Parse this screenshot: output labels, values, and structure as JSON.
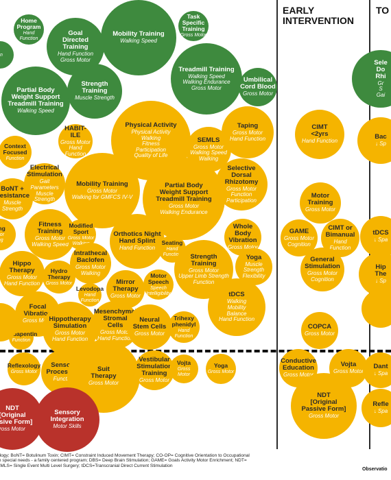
{
  "headers": {
    "early": "EARLY\nINTERVENTION",
    "right": "TO"
  },
  "colors": {
    "green": "#3e8a3e",
    "yellow": "#f5b400",
    "red": "#b9322b"
  },
  "bubbles": [
    {
      "title": "Home\nProgram",
      "sub": "Hand Function",
      "color": "green"
    },
    {
      "title": "",
      "sub": "on",
      "color": "green"
    },
    {
      "title": "Goal\nDirected\nTraining",
      "sub": "Hand Function\nGross Motor",
      "color": "green"
    },
    {
      "title": "Mobility Training",
      "sub": "Walking Speed",
      "color": "green"
    },
    {
      "title": "Task\nSpecific\nTraining",
      "sub": "Gross Motor",
      "color": "green"
    },
    {
      "title": "Treadmill Training",
      "sub": "Walking Speed\nWalking Endurance\nGross Motor",
      "color": "green"
    },
    {
      "title": "Partial Body\nWeight Support\nTreadmill Training",
      "sub": "Walking Speed",
      "color": "green"
    },
    {
      "title": "Strength\nTraining",
      "sub": "Muscle Strength",
      "color": "green"
    },
    {
      "title": "Umbilical\nCord Blood",
      "sub": "Gross Motor",
      "color": "green"
    },
    {
      "title": "Physical Activity",
      "sub": "Physical Activity\nWalking\nFitness\nParticipation\nQuality of Life",
      "color": "yellow"
    },
    {
      "title": "HABIT-ILE",
      "sub": "Gross Motor\nHand Function",
      "color": "yellow"
    },
    {
      "title": "SEMLS",
      "sub": "Gross Motor\nWalking Speed\nWalking",
      "color": "yellow"
    },
    {
      "title": "Taping",
      "sub": "Gross Motor\nHand Function",
      "color": "yellow"
    },
    {
      "title": "Context\nFocused",
      "sub": "Function",
      "color": "yellow"
    },
    {
      "title": "Electrical\nStimulation",
      "sub": "Gait Parameters\nMuscle Strength",
      "color": "yellow"
    },
    {
      "title": "Mobility Training",
      "sub": "Gross Motor\nWalking for GMFCS IV-V",
      "color": "yellow"
    },
    {
      "title": "Partial Body\nWeight Support\nTreadmill Training",
      "sub": "Gross Motor\nWalking Endurance",
      "color": "yellow"
    },
    {
      "title": "Selective\nDorsal\nRhizotomy",
      "sub": "Gross Motor\nFunction\nParticipation",
      "color": "yellow"
    },
    {
      "title": "BoNT +\nResistance",
      "sub": "Muscle\nStrength",
      "color": "yellow"
    },
    {
      "title": "Fitness\nTraining",
      "sub": "Gross Motor\nWalking Speed",
      "color": "yellow"
    },
    {
      "title": "Modified Sport",
      "sub": "Gross Motor\nWalking",
      "color": "yellow"
    },
    {
      "title": "Orthotics Night\nHand Splint",
      "sub": "Hand Function",
      "color": "yellow"
    },
    {
      "title": "Whole Body\nVibration",
      "sub": "Gross Motor",
      "color": "yellow"
    },
    {
      "title": "ting",
      "sub": "otor\ning",
      "color": "yellow"
    },
    {
      "title": "Intrathecal\nBaclofen",
      "sub": "Gross Motor\nWalking",
      "color": "yellow"
    },
    {
      "title": "Seating",
      "sub": "Hand\nFunction",
      "color": "yellow"
    },
    {
      "title": "Strength\nTraining",
      "sub": "Gross Motor\nUpper Limb Strength\nFunction",
      "color": "yellow"
    },
    {
      "title": "Yoga",
      "sub": "Muscle Strength\nFlexibility",
      "color": "yellow"
    },
    {
      "title": "Hippo\nTherapy",
      "sub": "Gross Motor\nHand Function",
      "color": "yellow"
    },
    {
      "title": "Hydro\nTherapy",
      "sub": "Gross Motor",
      "color": "yellow"
    },
    {
      "title": "Levodopa",
      "sub": "Hand Function",
      "color": "yellow"
    },
    {
      "title": "Mirror\nTherapy",
      "sub": "Gross Motor",
      "color": "yellow"
    },
    {
      "title": "Motor\nSpeech",
      "sub": "Speech\nIntelligibility",
      "color": "yellow"
    },
    {
      "title": "tDCS",
      "sub": "Walking\nMobility\nBalance\nHand Function",
      "color": "yellow"
    },
    {
      "title": "Focal\nVibration",
      "sub": "Gross Motor",
      "color": "yellow"
    },
    {
      "title": "Hippotherapy\nSimulation",
      "sub": "Gross Motor\nHand Function",
      "color": "yellow"
    },
    {
      "title": "Mesenchymal\nStromal\nCells",
      "sub": "Gross Motor\nHand Function",
      "color": "yellow"
    },
    {
      "title": "Neural\nStem Cells",
      "sub": "Gross Motor",
      "color": "yellow"
    },
    {
      "title": "Trihexy\nphenidyl",
      "sub": "Hand Function",
      "color": "yellow"
    },
    {
      "title": "Gabapentin",
      "sub": "Function",
      "color": "yellow"
    },
    {
      "title": "",
      "sub": "",
      "color": "yellow"
    },
    {
      "title": "CIMT\n<2yrs",
      "sub": "Hand Function",
      "color": "yellow"
    },
    {
      "title": "Motor\nTraining",
      "sub": "Gross Motor",
      "color": "yellow"
    },
    {
      "title": "GAME",
      "sub": "Gross Motor\nCognition",
      "color": "yellow"
    },
    {
      "title": "CIMT or\nBimanual",
      "sub": "Hand Function",
      "color": "yellow"
    },
    {
      "title": "General\nStimulation",
      "sub": "Gross Motor\nCognition",
      "color": "yellow"
    },
    {
      "title": "COPCA",
      "sub": "Gross Motor",
      "color": "yellow"
    },
    {
      "title": "Reflexology",
      "sub": "Gross Motor",
      "color": "yellow"
    },
    {
      "title": "Sensory\nProcessing",
      "sub": "Function",
      "color": "yellow"
    },
    {
      "title": "Suit\nTherapy",
      "sub": "Gross Motor",
      "color": "yellow"
    },
    {
      "title": "Vestibular\nStimulation\nTraining",
      "sub": "Gross Motor",
      "color": "yellow"
    },
    {
      "title": "Vojta",
      "sub": "Gross Motor",
      "color": "yellow"
    },
    {
      "title": "Yoga",
      "sub": "Gross Motor",
      "color": "yellow"
    },
    {
      "title": "Conductive\nEducation",
      "sub": "Gross Motor",
      "color": "yellow"
    },
    {
      "title": "Vojta",
      "sub": "Gross Motor",
      "color": "yellow"
    },
    {
      "title": "NDT\n[Original\nPassive Form]",
      "sub": "Gross Motor",
      "color": "yellow"
    },
    {
      "title": "NDT\n[Original\nassive Form]",
      "sub": "ross Motor",
      "color": "red"
    },
    {
      "title": "Sensory\nIntegration",
      "sub": "Motor Skills",
      "color": "red"
    },
    {
      "title": "Sele\nDo\nRhi",
      "sub": "Gr\nS\nGai",
      "color": "green"
    },
    {
      "title": "Bac",
      "sub": "↓ Sp",
      "color": "yellow"
    },
    {
      "title": "tDCS",
      "sub": "↓ Spa",
      "color": "yellow"
    },
    {
      "title": "Hip\nThe",
      "sub": "↓ Sp",
      "color": "yellow"
    },
    {
      "title": "",
      "sub": "",
      "color": "yellow"
    },
    {
      "title": "Dant",
      "sub": "↓ Spa",
      "color": "yellow"
    },
    {
      "title": "Refle",
      "sub": "↓ Spa",
      "color": "yellow"
    }
  ],
  "footer": {
    "line": "ology; BoNT= Botulinum Toxin; CIMT= Constraint Induced Movement Therapy; CO-OP= Cognitive Orientation to Occupational\nth special needs - a family centered program; DBS= Deep Brain Stimulation; GAME= Goals Activity Motor Enrichment; NDT=\nEMLS= Single Event Multi Level Surgery; tDCS=Transcranial Direct Current Stimulation",
    "right": "Observatio"
  }
}
